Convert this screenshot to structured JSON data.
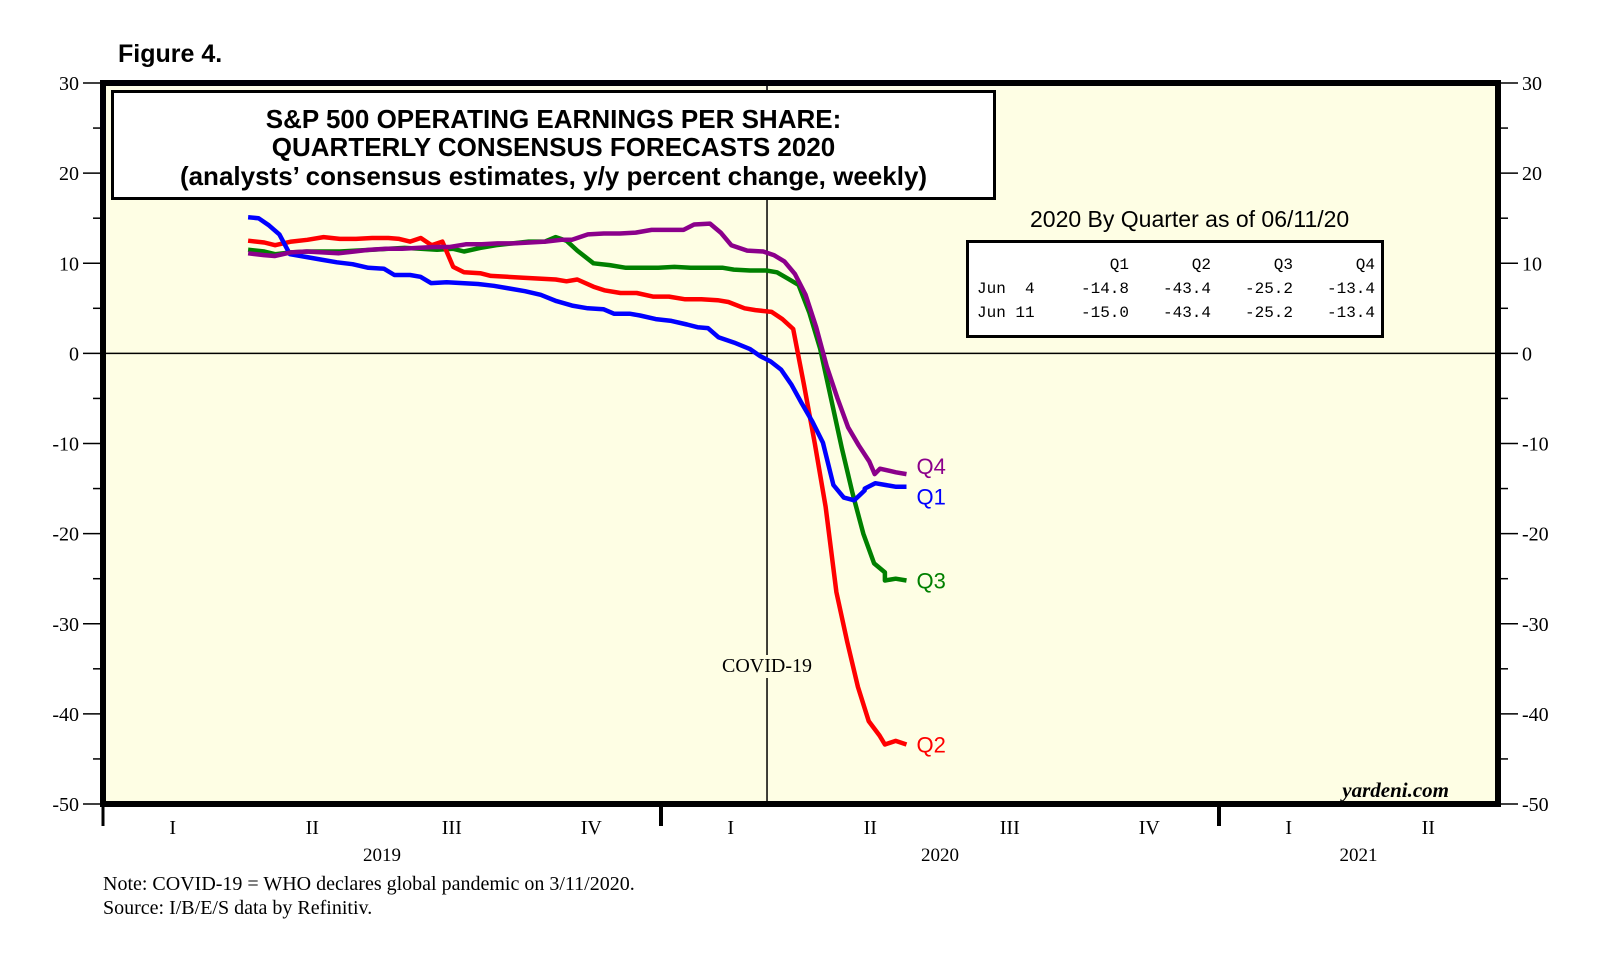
{
  "figure_label": "Figure 4.",
  "title": {
    "line1": "S&P 500 OPERATING EARNINGS PER SHARE:",
    "line2": "QUARTERLY CONSENSUS FORECASTS 2020",
    "line3": "(analysts’ consensus estimates, y/y percent change, weekly)"
  },
  "as_of_title": "2020 By Quarter as of 06/11/20",
  "summary_table": {
    "columns": [
      "",
      "Q1",
      "Q2",
      "Q3",
      "Q4"
    ],
    "rows": [
      {
        "label": "Jun  4",
        "values": [
          "-14.8",
          "-43.4",
          "-25.2",
          "-13.4"
        ]
      },
      {
        "label": "Jun 11",
        "values": [
          "-15.0",
          "-43.4",
          "-25.2",
          "-13.4"
        ]
      }
    ]
  },
  "annotation": "COVID-19",
  "brand": "yardeni.com",
  "footer": {
    "note": "Note: COVID-19 = WHO declares global pandemic on 3/11/2020.",
    "source": "Source: I/B/E/S data by Refinitiv."
  },
  "colors": {
    "plot_background": "#fefee4",
    "Q1": "#0000ff",
    "Q2": "#ff0000",
    "Q3": "#008000",
    "Q4": "#8b008b"
  },
  "chart_data": {
    "type": "line",
    "title": "S&P 500 OPERATING EARNINGS PER SHARE: QUARTERLY CONSENSUS FORECASTS 2020",
    "subtitle": "(analysts’ consensus estimates, y/y percent change, weekly)",
    "xlabel": "",
    "ylabel": "",
    "x_unit": "years since 2019-01-01",
    "xlim": [
      0,
      2.5
    ],
    "ylim": [
      -50,
      30
    ],
    "y_ticks": [
      30,
      20,
      10,
      0,
      -10,
      -20,
      -30,
      -40,
      -50
    ],
    "y_minor_step": 5,
    "x_quarter_ticks": [
      {
        "label": "I",
        "center": 0.125
      },
      {
        "label": "II",
        "center": 0.375
      },
      {
        "label": "III",
        "center": 0.625
      },
      {
        "label": "IV",
        "center": 0.875
      },
      {
        "label": "I",
        "center": 1.125
      },
      {
        "label": "II",
        "center": 1.375
      },
      {
        "label": "III",
        "center": 1.625
      },
      {
        "label": "IV",
        "center": 1.875
      },
      {
        "label": "I",
        "center": 2.125
      },
      {
        "label": "II",
        "center": 2.375
      }
    ],
    "x_year_labels": [
      {
        "label": "2019",
        "center": 0.5
      },
      {
        "label": "2020",
        "center": 1.5
      },
      {
        "label": "2021",
        "center": 2.25
      }
    ],
    "year_dividers": [
      1.0,
      2.0
    ],
    "reference_lines": {
      "y_zero": 0,
      "covid_x": 1.19
    },
    "legend": "end-of-line labels",
    "series": [
      {
        "name": "Q1",
        "label": "Q1",
        "points": [
          [
            0.26,
            15.1
          ],
          [
            0.28,
            15.0
          ],
          [
            0.3,
            14.2
          ],
          [
            0.32,
            13.2
          ],
          [
            0.34,
            11.0
          ],
          [
            0.37,
            10.7
          ],
          [
            0.4,
            10.4
          ],
          [
            0.43,
            10.1
          ],
          [
            0.46,
            9.9
          ],
          [
            0.49,
            9.5
          ],
          [
            0.52,
            9.4
          ],
          [
            0.54,
            8.7
          ],
          [
            0.57,
            8.7
          ],
          [
            0.59,
            8.5
          ],
          [
            0.61,
            7.8
          ],
          [
            0.64,
            7.9
          ],
          [
            0.67,
            7.8
          ],
          [
            0.7,
            7.7
          ],
          [
            0.73,
            7.5
          ],
          [
            0.76,
            7.2
          ],
          [
            0.79,
            6.9
          ],
          [
            0.82,
            6.5
          ],
          [
            0.85,
            5.8
          ],
          [
            0.88,
            5.3
          ],
          [
            0.91,
            5.0
          ],
          [
            0.94,
            4.9
          ],
          [
            0.96,
            4.4
          ],
          [
            0.99,
            4.4
          ],
          [
            1.01,
            4.2
          ],
          [
            1.04,
            3.8
          ],
          [
            1.07,
            3.6
          ],
          [
            1.1,
            3.2
          ],
          [
            1.12,
            2.9
          ],
          [
            1.14,
            2.8
          ],
          [
            1.16,
            1.8
          ],
          [
            1.19,
            1.2
          ],
          [
            1.22,
            0.5
          ],
          [
            1.24,
            -0.3
          ],
          [
            1.26,
            -0.9
          ],
          [
            1.28,
            -1.8
          ],
          [
            1.3,
            -3.5
          ],
          [
            1.32,
            -5.6
          ],
          [
            1.34,
            -7.6
          ],
          [
            1.36,
            -9.9
          ],
          [
            1.38,
            -14.6
          ],
          [
            1.4,
            -16.0
          ],
          [
            1.42,
            -16.3
          ],
          [
            1.44,
            -15.2
          ],
          [
            1.46,
            -14.4
          ],
          [
            1.48,
            -14.6
          ],
          [
            1.5,
            -14.8
          ],
          [
            1.52,
            -14.8
          ],
          [
            1.44,
            -15.0
          ]
        ]
      },
      {
        "name": "Q2",
        "label": "Q2",
        "points": [
          [
            0.26,
            12.5
          ],
          [
            0.29,
            12.3
          ],
          [
            0.31,
            12.0
          ],
          [
            0.34,
            12.4
          ],
          [
            0.37,
            12.6
          ],
          [
            0.4,
            12.9
          ],
          [
            0.43,
            12.7
          ],
          [
            0.46,
            12.7
          ],
          [
            0.49,
            12.8
          ],
          [
            0.52,
            12.8
          ],
          [
            0.54,
            12.7
          ],
          [
            0.56,
            12.4
          ],
          [
            0.58,
            12.8
          ],
          [
            0.6,
            12.0
          ],
          [
            0.62,
            12.4
          ],
          [
            0.64,
            9.6
          ],
          [
            0.66,
            9.0
          ],
          [
            0.69,
            8.9
          ],
          [
            0.71,
            8.6
          ],
          [
            0.74,
            8.5
          ],
          [
            0.77,
            8.4
          ],
          [
            0.8,
            8.3
          ],
          [
            0.83,
            8.2
          ],
          [
            0.85,
            8.0
          ],
          [
            0.87,
            8.2
          ],
          [
            0.9,
            7.4
          ],
          [
            0.92,
            7.0
          ],
          [
            0.95,
            6.7
          ],
          [
            0.98,
            6.7
          ],
          [
            1.01,
            6.3
          ],
          [
            1.04,
            6.3
          ],
          [
            1.07,
            6.0
          ],
          [
            1.1,
            6.0
          ],
          [
            1.13,
            5.9
          ],
          [
            1.15,
            5.7
          ],
          [
            1.18,
            5.0
          ],
          [
            1.2,
            4.8
          ],
          [
            1.23,
            4.6
          ],
          [
            1.25,
            3.8
          ],
          [
            1.27,
            2.7
          ],
          [
            1.29,
            -3.5
          ],
          [
            1.31,
            -10.0
          ],
          [
            1.33,
            -17.0
          ],
          [
            1.35,
            -26.5
          ],
          [
            1.37,
            -32.0
          ],
          [
            1.39,
            -37.0
          ],
          [
            1.41,
            -40.8
          ],
          [
            1.43,
            -42.4
          ],
          [
            1.46,
            -43.0
          ],
          [
            1.48,
            -43.4
          ],
          [
            1.44,
            -43.4
          ]
        ]
      },
      {
        "name": "Q3",
        "label": "Q3",
        "points": [
          [
            0.26,
            11.5
          ],
          [
            0.29,
            11.3
          ],
          [
            0.31,
            11.0
          ],
          [
            0.34,
            11.2
          ],
          [
            0.37,
            11.3
          ],
          [
            0.4,
            11.3
          ],
          [
            0.43,
            11.3
          ],
          [
            0.46,
            11.4
          ],
          [
            0.49,
            11.5
          ],
          [
            0.52,
            11.6
          ],
          [
            0.55,
            11.7
          ],
          [
            0.58,
            11.6
          ],
          [
            0.61,
            11.5
          ],
          [
            0.64,
            11.6
          ],
          [
            0.66,
            11.3
          ],
          [
            0.69,
            11.7
          ],
          [
            0.72,
            12.0
          ],
          [
            0.75,
            12.2
          ],
          [
            0.78,
            12.4
          ],
          [
            0.81,
            12.4
          ],
          [
            0.83,
            12.9
          ],
          [
            0.85,
            12.5
          ],
          [
            0.87,
            11.4
          ],
          [
            0.9,
            10.0
          ],
          [
            0.93,
            9.8
          ],
          [
            0.96,
            9.5
          ],
          [
            0.99,
            9.5
          ],
          [
            1.02,
            9.5
          ],
          [
            1.05,
            9.6
          ],
          [
            1.08,
            9.5
          ],
          [
            1.11,
            9.5
          ],
          [
            1.14,
            9.5
          ],
          [
            1.16,
            9.3
          ],
          [
            1.19,
            9.2
          ],
          [
            1.22,
            9.2
          ],
          [
            1.24,
            9.0
          ],
          [
            1.26,
            8.3
          ],
          [
            1.28,
            7.6
          ],
          [
            1.3,
            4.5
          ],
          [
            1.32,
            0.5
          ],
          [
            1.34,
            -5.0
          ],
          [
            1.36,
            -10.5
          ],
          [
            1.38,
            -15.5
          ],
          [
            1.4,
            -20.0
          ],
          [
            1.42,
            -23.3
          ],
          [
            1.44,
            -24.3
          ],
          [
            1.46,
            -25.0
          ],
          [
            1.48,
            -25.2
          ],
          [
            1.44,
            -25.2
          ]
        ]
      },
      {
        "name": "Q4",
        "label": "Q4",
        "points": [
          [
            0.26,
            11.1
          ],
          [
            0.29,
            10.9
          ],
          [
            0.31,
            10.8
          ],
          [
            0.34,
            11.2
          ],
          [
            0.37,
            11.3
          ],
          [
            0.4,
            11.2
          ],
          [
            0.43,
            11.1
          ],
          [
            0.46,
            11.3
          ],
          [
            0.49,
            11.5
          ],
          [
            0.52,
            11.6
          ],
          [
            0.55,
            11.6
          ],
          [
            0.58,
            11.7
          ],
          [
            0.61,
            11.8
          ],
          [
            0.64,
            11.8
          ],
          [
            0.67,
            12.1
          ],
          [
            0.7,
            12.1
          ],
          [
            0.73,
            12.2
          ],
          [
            0.76,
            12.2
          ],
          [
            0.79,
            12.3
          ],
          [
            0.82,
            12.4
          ],
          [
            0.85,
            12.6
          ],
          [
            0.87,
            12.6
          ],
          [
            0.9,
            13.2
          ],
          [
            0.93,
            13.3
          ],
          [
            0.96,
            13.3
          ],
          [
            0.99,
            13.4
          ],
          [
            1.02,
            13.7
          ],
          [
            1.05,
            13.7
          ],
          [
            1.08,
            13.7
          ],
          [
            1.1,
            14.3
          ],
          [
            1.13,
            14.4
          ],
          [
            1.15,
            13.4
          ],
          [
            1.17,
            12.0
          ],
          [
            1.2,
            11.4
          ],
          [
            1.23,
            11.3
          ],
          [
            1.25,
            10.9
          ],
          [
            1.27,
            10.2
          ],
          [
            1.29,
            8.8
          ],
          [
            1.31,
            6.5
          ],
          [
            1.33,
            2.9
          ],
          [
            1.35,
            -1.5
          ],
          [
            1.37,
            -5.0
          ],
          [
            1.39,
            -8.2
          ],
          [
            1.41,
            -10.2
          ],
          [
            1.43,
            -12.0
          ],
          [
            1.45,
            -12.8
          ],
          [
            1.48,
            -13.2
          ],
          [
            1.5,
            -13.4
          ],
          [
            1.44,
            -13.4
          ]
        ]
      }
    ]
  }
}
